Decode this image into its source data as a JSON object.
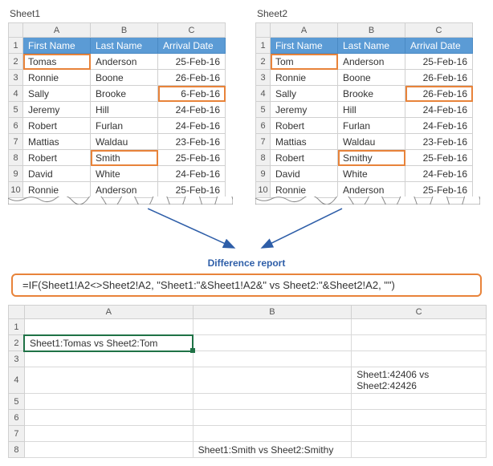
{
  "sheet1": {
    "name": "Sheet1",
    "colHeaders": [
      "A",
      "B",
      "C"
    ],
    "rowHeaders": [
      "1",
      "2",
      "3",
      "4",
      "5",
      "6",
      "7",
      "8",
      "9",
      "10"
    ],
    "tableHeader": [
      "First Name",
      "Last Name",
      "Arrival Date"
    ],
    "rows": [
      {
        "fn": "Tomas",
        "ln": "Anderson",
        "ad": "25-Feb-16",
        "diff": {
          "fn": true
        }
      },
      {
        "fn": "Ronnie",
        "ln": "Boone",
        "ad": "26-Feb-16",
        "diff": {}
      },
      {
        "fn": "Sally",
        "ln": "Brooke",
        "ad": "6-Feb-16",
        "diff": {
          "ad": true
        }
      },
      {
        "fn": "Jeremy",
        "ln": "Hill",
        "ad": "24-Feb-16",
        "diff": {}
      },
      {
        "fn": "Robert",
        "ln": "Furlan",
        "ad": "24-Feb-16",
        "diff": {}
      },
      {
        "fn": "Mattias",
        "ln": "Waldau",
        "ad": "23-Feb-16",
        "diff": {}
      },
      {
        "fn": "Robert",
        "ln": "Smith",
        "ad": "25-Feb-16",
        "diff": {
          "ln": true
        }
      },
      {
        "fn": "David",
        "ln": "White",
        "ad": "24-Feb-16",
        "diff": {}
      },
      {
        "fn": "Ronnie",
        "ln": "Anderson",
        "ad": "25-Feb-16",
        "diff": {}
      }
    ]
  },
  "sheet2": {
    "name": "Sheet2",
    "colHeaders": [
      "A",
      "B",
      "C"
    ],
    "rowHeaders": [
      "1",
      "2",
      "3",
      "4",
      "5",
      "6",
      "7",
      "8",
      "9",
      "10"
    ],
    "tableHeader": [
      "First Name",
      "Last Name",
      "Arrival Date"
    ],
    "rows": [
      {
        "fn": "Tom",
        "ln": "Anderson",
        "ad": "25-Feb-16",
        "diff": {
          "fn": true
        }
      },
      {
        "fn": "Ronnie",
        "ln": "Boone",
        "ad": "26-Feb-16",
        "diff": {}
      },
      {
        "fn": "Sally",
        "ln": "Brooke",
        "ad": "26-Feb-16",
        "diff": {
          "ad": true
        }
      },
      {
        "fn": "Jeremy",
        "ln": "Hill",
        "ad": "24-Feb-16",
        "diff": {}
      },
      {
        "fn": "Robert",
        "ln": "Furlan",
        "ad": "24-Feb-16",
        "diff": {}
      },
      {
        "fn": "Mattias",
        "ln": "Waldau",
        "ad": "23-Feb-16",
        "diff": {}
      },
      {
        "fn": "Robert",
        "ln": "Smithy",
        "ad": "25-Feb-16",
        "diff": {
          "ln": true
        }
      },
      {
        "fn": "David",
        "ln": "White",
        "ad": "24-Feb-16",
        "diff": {}
      },
      {
        "fn": "Ronnie",
        "ln": "Anderson",
        "ad": "25-Feb-16",
        "diff": {}
      }
    ]
  },
  "diffLabel": "Difference report",
  "formula": "=IF(Sheet1!A2<>Sheet2!A2, \"Sheet1:\"&Sheet1!A2&\" vs Sheet2:\"&Sheet2!A2, \"\")",
  "result": {
    "colHeaders": [
      "A",
      "B",
      "C"
    ],
    "rowHeaders": [
      "1",
      "2",
      "3",
      "4",
      "5",
      "6",
      "7",
      "8"
    ],
    "cells": {
      "A2": "Sheet1:Tomas vs Sheet2:Tom",
      "C4": "Sheet1:42406 vs Sheet2:42426",
      "B8": "Sheet1:Smith vs Sheet2:Smithy"
    },
    "selected": "A2"
  },
  "colors": {
    "headerBg": "#5b9bd5",
    "diffBorder": "#e8833a",
    "selBorder": "#1f7246",
    "arrowColor": "#2e5ea8"
  }
}
